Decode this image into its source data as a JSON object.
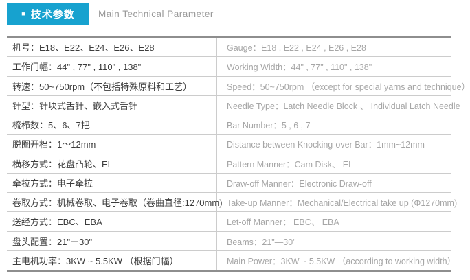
{
  "header": {
    "bullet": "■",
    "title_cn": "技术参数",
    "title_en": "Main Technical Parameter"
  },
  "colors": {
    "accent": "#17a2cf",
    "cn_text": "#3c3c3c",
    "en_text": "#a6a6a6",
    "border_heavy": "#8e8e8e",
    "border_light": "#cccccc"
  },
  "table": {
    "rows": [
      {
        "cn": "机号：E18、E22、E24、E26、E28",
        "en": "Gauge：E18 , E22 , E24 , E26 , E28"
      },
      {
        "cn": "工作门幅：44\" , 77\" , 110\" , 138\"",
        "en": "Working Width：44\" , 77\" , 110\" , 138\""
      },
      {
        "cn": "转速：50~750rpm（不包括特殊原料和工艺）",
        "en": "Speed：50~750rpm （except for special yarns and technique）"
      },
      {
        "cn": "针型：针块式舌针、嵌入式舌针",
        "en": "Needle Type：Latch Needle Block 、 Individual Latch Needle"
      },
      {
        "cn": "梳栉数：5、6、7把",
        "en": "Bar Number：5 , 6 , 7"
      },
      {
        "cn": "脱圈开档：1～12mm",
        "en": "Distance between Knocking-over Bar：1mm~12mm"
      },
      {
        "cn": "横移方式：花盘凸轮、EL",
        "en": "Pattern Manner：Cam Disk、 EL"
      },
      {
        "cn": "牵拉方式：电子牵拉",
        "en": "Draw-off Manner：Electronic Draw-off"
      },
      {
        "cn": "卷取方式：机械卷取、电子卷取（卷曲直径:1270mm)",
        "en": "Take-up Manner：Mechanical/Electrical take up (Φ1270mm)"
      },
      {
        "cn": "送经方式：EBC、EBA",
        "en": "Let-off Manner： EBC、 EBA"
      },
      {
        "cn": "盘头配置：21\"－30\"",
        "en": "Beams：21\"—30\""
      },
      {
        "cn": "主电机功率：3KW ~ 5.5KW （根据门幅）",
        "en": "Main Power：3KW ~ 5.5KW （according to working width）"
      }
    ]
  }
}
